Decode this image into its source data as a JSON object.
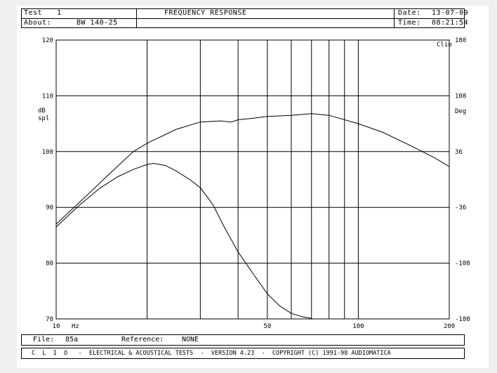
{
  "header": {
    "test_label": "Test",
    "test_value": "1",
    "about_label": "About:",
    "about_value": "BW 140-25",
    "title": "FREQUENCY RESPONSE",
    "date_label": "Date:",
    "date_value": "13-07-09",
    "time_label": "Time:",
    "time_value": "08:21:54"
  },
  "footer": {
    "file_label": "File:",
    "file_value": "85a",
    "reference_label": "Reference:",
    "reference_value": "NONE",
    "copyright": "C  L  I  O   -  ELECTRICAL & ACOUSTICAL TESTS  -  VERSION 4.23  -  COPYRIGHT (C) 1991-98 AUDIOMATICA"
  },
  "chart_data": {
    "type": "line",
    "title": "FREQUENCY RESPONSE",
    "x_scale": "log",
    "xlim": [
      10,
      200
    ],
    "x_tick_labels": [
      "10",
      "50",
      "100",
      "200"
    ],
    "x_unit_label": "Hz",
    "ylim": [
      70,
      120
    ],
    "y_ticks": [
      70,
      80,
      90,
      100,
      110,
      120
    ],
    "ylabel": "dB spl",
    "y2lim": [
      -180,
      180
    ],
    "y2_ticks": [
      -180,
      -108,
      -36,
      36,
      108,
      180
    ],
    "y2label": "Deg",
    "y2_top_marker": "Clio",
    "grid": true,
    "series": [
      {
        "color": "#000000",
        "x": [
          10,
          12,
          15,
          18,
          20,
          25,
          30,
          35,
          38,
          40,
          45,
          50,
          60,
          70,
          80,
          100,
          120,
          150,
          180,
          200
        ],
        "y": [
          87,
          91,
          96,
          100,
          101.5,
          104,
          105.3,
          105.5,
          105.3,
          105.7,
          106,
          106.3,
          106.5,
          106.8,
          106.5,
          105,
          103.5,
          101,
          98.8,
          97.3
        ]
      },
      {
        "color": "#000000",
        "x": [
          10,
          12,
          14,
          16,
          18,
          20,
          21,
          23,
          25,
          28,
          30,
          33,
          36,
          40,
          45,
          50,
          55,
          60,
          65,
          70
        ],
        "y": [
          86.5,
          90.5,
          93.5,
          95.5,
          96.8,
          97.7,
          97.9,
          97.5,
          96.5,
          94.8,
          93.5,
          90.5,
          86.5,
          82,
          78,
          74.5,
          72.3,
          71,
          70.4,
          70.1
        ]
      }
    ]
  }
}
